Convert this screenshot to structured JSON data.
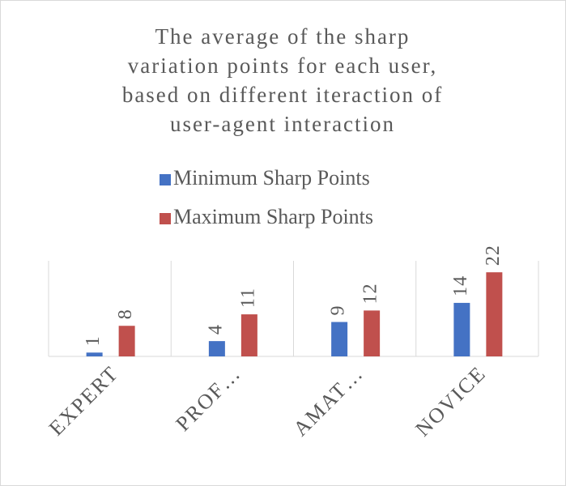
{
  "chart_data": {
    "type": "bar",
    "title": [
      "The average of the sharp",
      "variation points for each user,",
      "based on different iteraction of",
      "user-agent interaction"
    ],
    "categories": [
      "EXPERT",
      "PROF…",
      "AMAT…",
      "NOVICE"
    ],
    "series": [
      {
        "name": "Minimum Sharp Points",
        "color": "#4472c4",
        "values": [
          1,
          4,
          9,
          14
        ]
      },
      {
        "name": "Maximum Sharp Points",
        "color": "#c0504d",
        "values": [
          8,
          11,
          12,
          22
        ]
      }
    ],
    "ylim": [
      0,
      25
    ]
  }
}
